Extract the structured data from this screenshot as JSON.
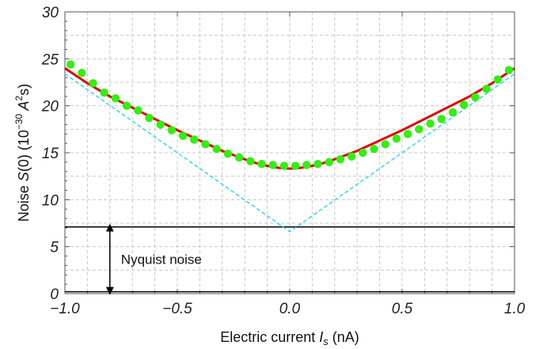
{
  "chart_data": {
    "type": "line",
    "xlabel": "Electric current I_s (nA)",
    "xlabel_parts": {
      "pre": "Electric current ",
      "var": "I",
      "sub": "s",
      "post": " (nA)"
    },
    "ylabel_parts": {
      "pre": "Noise ",
      "var": "S",
      "mid": "(0) (10",
      "exp": "−30",
      "unit": " A",
      "unitexp": "2",
      "end": "s)"
    },
    "xlim": [
      -1.0,
      1.0
    ],
    "ylim": [
      0,
      30
    ],
    "x_ticks": [
      {
        "v": -1.0,
        "label": "−1.0"
      },
      {
        "v": -0.5,
        "label": "−0.5"
      },
      {
        "v": 0.0,
        "label": "0.0"
      },
      {
        "v": 0.5,
        "label": "0.5"
      },
      {
        "v": 1.0,
        "label": "1.0"
      }
    ],
    "y_ticks": [
      {
        "v": 0,
        "label": "0"
      },
      {
        "v": 5,
        "label": "5"
      },
      {
        "v": 10,
        "label": "10"
      },
      {
        "v": 15,
        "label": "15"
      },
      {
        "v": 20,
        "label": "20"
      },
      {
        "v": 25,
        "label": "25"
      },
      {
        "v": 30,
        "label": "30"
      }
    ],
    "grid": true,
    "series": [
      {
        "style": "solid-red",
        "color": "#e00000",
        "x": [
          -1.0,
          -0.9,
          -0.8,
          -0.7,
          -0.6,
          -0.5,
          -0.4,
          -0.3,
          -0.2,
          -0.15,
          -0.1,
          -0.05,
          0.0,
          0.05,
          0.1,
          0.15,
          0.2,
          0.3,
          0.4,
          0.5,
          0.6,
          0.7,
          0.8,
          0.9,
          1.0
        ],
        "y": [
          24.0,
          22.4,
          21.0,
          19.8,
          18.6,
          17.4,
          16.3,
          15.2,
          14.3,
          13.9,
          13.6,
          13.4,
          13.3,
          13.4,
          13.6,
          13.9,
          14.3,
          15.2,
          16.3,
          17.4,
          18.6,
          19.8,
          21.0,
          22.4,
          24.0
        ]
      },
      {
        "style": "dashed-cyan",
        "color": "#34d8e8",
        "x": [
          -1.0,
          0.0,
          1.0
        ],
        "y": [
          23.4,
          6.6,
          23.4
        ]
      },
      {
        "style": "points-green",
        "color": "#33ee11",
        "x": [
          -0.975,
          -0.925,
          -0.875,
          -0.825,
          -0.775,
          -0.725,
          -0.675,
          -0.625,
          -0.575,
          -0.525,
          -0.475,
          -0.425,
          -0.375,
          -0.325,
          -0.275,
          -0.225,
          -0.175,
          -0.125,
          -0.075,
          -0.025,
          0.025,
          0.075,
          0.125,
          0.175,
          0.225,
          0.275,
          0.325,
          0.375,
          0.425,
          0.475,
          0.525,
          0.575,
          0.625,
          0.675,
          0.725,
          0.775,
          0.825,
          0.875,
          0.925,
          0.975
        ],
        "y": [
          24.4,
          23.5,
          22.4,
          21.4,
          20.8,
          20.0,
          19.5,
          18.7,
          18.0,
          17.4,
          16.8,
          16.4,
          15.9,
          15.4,
          14.9,
          14.5,
          14.1,
          13.8,
          13.7,
          13.6,
          13.6,
          13.7,
          13.8,
          14.0,
          14.3,
          14.6,
          15.0,
          15.4,
          15.9,
          16.5,
          17.0,
          17.5,
          18.1,
          18.6,
          19.3,
          20.1,
          20.9,
          21.8,
          22.8,
          23.8
        ]
      },
      {
        "style": "solid-black",
        "color": "#000000",
        "x": [
          -1.0,
          1.0
        ],
        "y": [
          7.1,
          7.1
        ]
      },
      {
        "style": "solid-black",
        "color": "#000000",
        "x": [
          -1.0,
          1.0
        ],
        "y": [
          0.2,
          0.2
        ]
      }
    ],
    "annotation": {
      "text": "Nyquist noise",
      "arrow_x": -0.8,
      "arrow_y": [
        0.2,
        7.1
      ]
    }
  }
}
